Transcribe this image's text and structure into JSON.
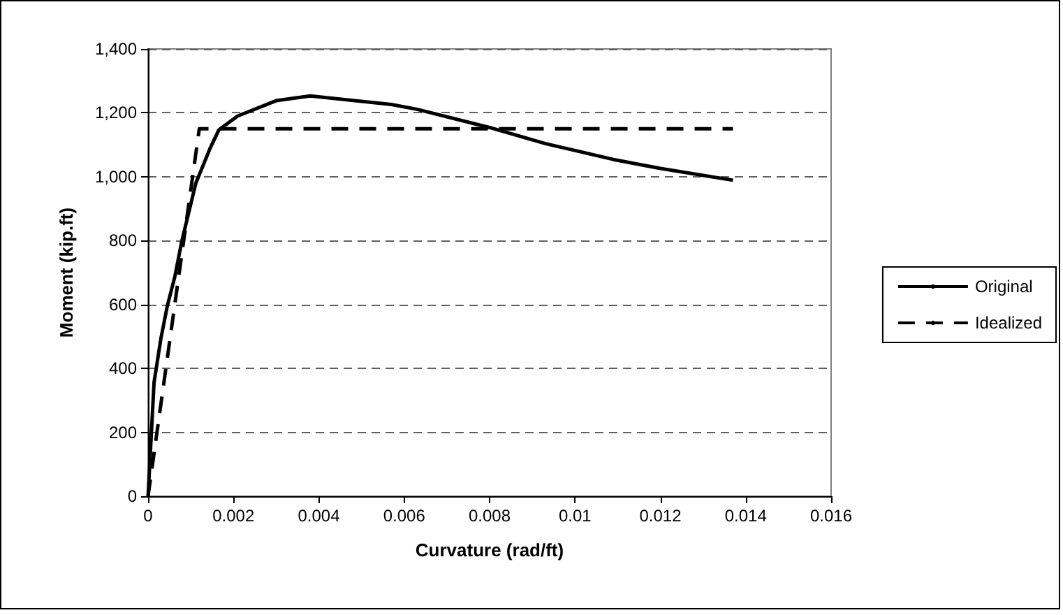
{
  "chart_data": {
    "type": "line",
    "xlabel": "Curvature (rad/ft)",
    "ylabel": "Moment (kip.ft)",
    "xlim": [
      0,
      0.016
    ],
    "xticks": [
      0,
      0.002,
      0.004,
      0.006,
      0.008,
      0.01,
      0.012,
      0.014,
      0.016
    ],
    "ylim": [
      0,
      1400
    ],
    "yticks": [
      0,
      200,
      400,
      600,
      800,
      {
        "value": 1000,
        "label": "1,000"
      },
      {
        "value": 1200,
        "label": "1,200"
      },
      {
        "value": 1400,
        "label": "1,400"
      }
    ],
    "grid": "y",
    "legend": "right",
    "marker": "none",
    "series": [
      {
        "name": "Original",
        "color": "#000000",
        "line_style": "solid",
        "x": [
          0,
          0.00014,
          0.0003,
          0.00045,
          0.00063,
          0.00079,
          0.00112,
          0.00145,
          0.00166,
          0.0021,
          0.003,
          0.0038,
          0.0057,
          0.0063,
          0.008,
          0.0093,
          0.0109,
          0.012,
          0.0137
        ],
        "values": [
          0,
          356,
          493,
          595,
          689,
          798,
          980,
          1088,
          1147,
          1190,
          1238,
          1253,
          1226,
          1211,
          1154,
          1104,
          1054,
          1026,
          989
        ]
      },
      {
        "name": "Idealized",
        "color": "#000000",
        "line_style": "dashed",
        "x": [
          0,
          0.0012,
          0.0137
        ],
        "values": [
          0,
          1150,
          1150
        ]
      }
    ]
  }
}
